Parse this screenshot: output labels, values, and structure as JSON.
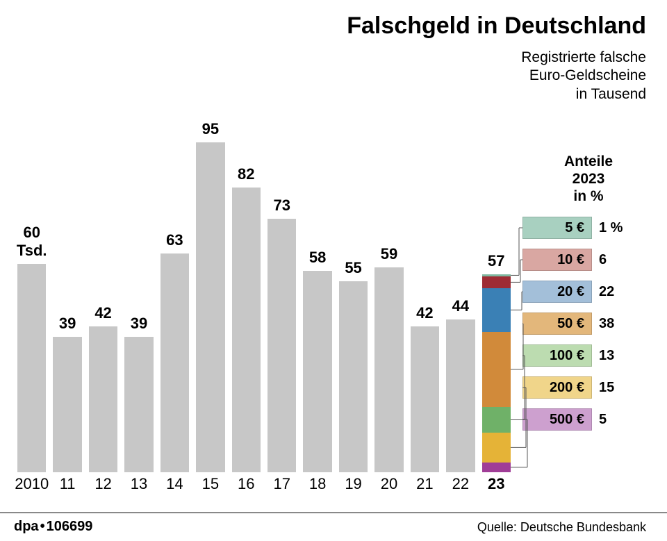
{
  "title": "Falschgeld in Deutschland",
  "title_fontsize": 34,
  "subtitle_lines": [
    "Registrierte falsche",
    "Euro-Geldscheine",
    "in Tausend"
  ],
  "subtitle_fontsize": 21,
  "footer": {
    "agency": "dpa",
    "dot": "•",
    "id": "106699",
    "source": "Quelle: Deutsche Bundesbank",
    "fontsize": 20
  },
  "bar_chart": {
    "type": "bar",
    "ymax": 100,
    "bar_color": "#c7c7c7",
    "value_fontsize": 22,
    "xlabel_fontsize": 22,
    "bars": [
      {
        "x": "2010",
        "v": 60,
        "label": "60\nTsd.",
        "bold_x": false
      },
      {
        "x": "11",
        "v": 39,
        "label": "39"
      },
      {
        "x": "12",
        "v": 42,
        "label": "42"
      },
      {
        "x": "13",
        "v": 39,
        "label": "39"
      },
      {
        "x": "14",
        "v": 63,
        "label": "63"
      },
      {
        "x": "15",
        "v": 95,
        "label": "95"
      },
      {
        "x": "16",
        "v": 82,
        "label": "82"
      },
      {
        "x": "17",
        "v": 73,
        "label": "73"
      },
      {
        "x": "18",
        "v": 58,
        "label": "58"
      },
      {
        "x": "19",
        "v": 55,
        "label": "55"
      },
      {
        "x": "20",
        "v": 59,
        "label": "59"
      },
      {
        "x": "21",
        "v": 42,
        "label": "42"
      },
      {
        "x": "22",
        "v": 44,
        "label": "44"
      },
      {
        "x": "23",
        "v": 57,
        "label": "57",
        "bold_x": true,
        "stacked": true
      }
    ]
  },
  "stacked_2023": {
    "order_top_to_bottom": [
      "5€_top",
      "10€",
      "20€",
      "50€",
      "100€",
      "200€",
      "500€"
    ],
    "segments": {
      "5€_top": {
        "pct": 1,
        "color": "#7fb8a0"
      },
      "10€": {
        "pct": 6,
        "color": "#9e2b34"
      },
      "20€": {
        "pct": 22,
        "color": "#3a80b5"
      },
      "50€": {
        "pct": 38,
        "color": "#d18a3a"
      },
      "100€": {
        "pct": 13,
        "color": "#6fb168"
      },
      "200€": {
        "pct": 15,
        "color": "#e5b337"
      },
      "500€": {
        "pct": 5,
        "color": "#a03d97"
      }
    }
  },
  "legend": {
    "title_lines": [
      "Anteile",
      "2023",
      "in %"
    ],
    "title_fontsize": 21,
    "row_fontsize": 20,
    "rows": [
      {
        "denom": "5 €",
        "pct": "1 %",
        "swatch": "#a8d0c0",
        "text": "#000"
      },
      {
        "denom": "10 €",
        "pct": "6",
        "swatch": "#d9a7a2",
        "text": "#000"
      },
      {
        "denom": "20 €",
        "pct": "22",
        "swatch": "#a3bfd9",
        "text": "#000"
      },
      {
        "denom": "50 €",
        "pct": "38",
        "swatch": "#e3b77b",
        "text": "#000"
      },
      {
        "denom": "100 €",
        "pct": "13",
        "swatch": "#bcdcb0",
        "text": "#000"
      },
      {
        "denom": "200 €",
        "pct": "15",
        "swatch": "#f0d58a",
        "text": "#000"
      },
      {
        "denom": "500 €",
        "pct": "5",
        "swatch": "#cda0cf",
        "text": "#000"
      }
    ],
    "connector_color": "#555555"
  }
}
